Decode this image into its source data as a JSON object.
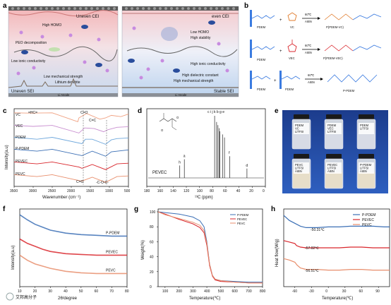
{
  "panels": {
    "a": {
      "label": "a",
      "left_top": "Uneven CEI",
      "right_top": "even CEI",
      "left_items": [
        "High HOMO",
        "PEO decomposition",
        "Low ionic conductivity",
        "Low mechanical strength",
        "Lithium dendrite"
      ],
      "left_bottom": "Uneven SEI",
      "left_anode": "Li Anode",
      "right_items": [
        "Low HOMO",
        "High stability",
        "High ionic conductivity",
        "High dielectric constant",
        "High mechanical strength"
      ],
      "right_bottom": "Stable SEI",
      "right_anode": "Li Anode"
    },
    "b": {
      "label": "b",
      "rows": [
        {
          "reactant1": "PDEM",
          "reactant2": "VC",
          "cond_top": "60℃",
          "cond_bottom": "AIBN",
          "product": "P(PDEM-VC)"
        },
        {
          "reactant1": "PDEM",
          "reactant2": "VEC",
          "cond_top": "60℃",
          "cond_bottom": "AIBN",
          "product": "P(PDEM-VEC)"
        },
        {
          "reactant1": "PDEM",
          "reactant2": "PDEM",
          "cond_top": "60℃",
          "cond_bottom": "AIBN",
          "product": "P-PDEM"
        }
      ]
    },
    "c": {
      "label": "c",
      "ylabel": "Intensity(a.u)",
      "xlabel": "Wavenumber (cm⁻¹)",
      "xticks": [
        "3500",
        "3000",
        "2500",
        "2000",
        "1500",
        "1000",
        "500"
      ],
      "annotations": [
        "=HC=",
        "C=O",
        "C=C",
        "C=O",
        "-C-O-C-"
      ],
      "series": [
        "VC",
        "VEC",
        "PDEM",
        "P-PDEM",
        "PEVEC",
        "PEVC"
      ]
    },
    "d": {
      "label": "d",
      "ylabel": "",
      "xlabel": "¹³C (ppm)",
      "xticks": [
        "180",
        "160",
        "140",
        "120",
        "100",
        "80",
        "60",
        "40",
        "20",
        "0"
      ],
      "peak_labels": [
        "c",
        "i",
        "j",
        "k",
        "b",
        "g",
        "e",
        "h",
        "a",
        "f",
        "d"
      ],
      "sample": "PEVEC"
    },
    "e": {
      "label": "e",
      "top_vials": [
        "PDEM\nVC\nLiTFSI",
        "PDEM\nVEC\nLiTFSI",
        "PDEM\nLiTFSI"
      ],
      "bottom_vials": [
        "PEVC\nLiTFSI\nAIBN",
        "PEVEC\nLiTFSI\nAIBN",
        "P-PDEM\nLiTFSI\nAIBN"
      ]
    },
    "f": {
      "label": "f",
      "ylabel": "Intensity(a.u)",
      "xlabel": "2θ/degree",
      "xticks": [
        "10",
        "20",
        "30",
        "40",
        "50",
        "60",
        "70",
        "80"
      ],
      "series": [
        "P-PDEM",
        "PEVEC",
        "PEVC"
      ]
    },
    "g": {
      "label": "g",
      "ylabel": "Weight(%)",
      "xlabel": "Temperature(℃)",
      "xticks": [
        "100",
        "200",
        "300",
        "400",
        "500",
        "600",
        "700",
        "800"
      ],
      "yticks": [
        "0",
        "20",
        "40",
        "60",
        "80",
        "100"
      ],
      "legend": [
        "P-PDEM",
        "PEVEC",
        "PEVC"
      ]
    },
    "h": {
      "label": "h",
      "ylabel": "Heat flow(W/g)",
      "xlabel": "Temperature(℃)",
      "xticks": [
        "-60",
        "-30",
        "0",
        "30",
        "60",
        "90"
      ],
      "legend": [
        "P-PDEM",
        "PEVEC",
        "PEVC"
      ],
      "tg_labels": [
        "-50.31℃",
        "-57.02℃",
        "-56.51℃"
      ]
    }
  },
  "watermark": "艾邦高分子",
  "colors": {
    "pPDEM": "#3b6fb5",
    "pevec": "#d9262c",
    "pevc": "#e88e6c",
    "vc": "#f0a080",
    "vec": "#c98fd0",
    "pdem": "#6fa8dc",
    "gray": "#555555"
  },
  "chart_data": [
    {
      "panel": "c",
      "type": "line",
      "title": "",
      "xlabel": "Wavenumber (cm⁻¹)",
      "ylabel": "Intensity(a.u)",
      "xlim": [
        3500,
        500
      ],
      "series": [
        {
          "name": "VC",
          "x": [
            3500,
            3100,
            2500,
            1830,
            1800,
            1600,
            1250,
            1100,
            950,
            700,
            500
          ],
          "values": [
            0.9,
            0.88,
            0.9,
            0.2,
            0.5,
            0.85,
            0.4,
            0.5,
            0.7,
            0.6,
            0.8
          ]
        },
        {
          "name": "VEC",
          "x": [
            3500,
            3000,
            2500,
            1800,
            1650,
            1400,
            1150,
            1050,
            800,
            500
          ],
          "values": [
            0.8,
            0.72,
            0.8,
            0.2,
            0.6,
            0.55,
            0.3,
            0.45,
            0.65,
            0.7
          ]
        },
        {
          "name": "PDEM",
          "x": [
            3500,
            2900,
            2500,
            1720,
            1630,
            1450,
            1100,
            950,
            800,
            500
          ],
          "values": [
            0.75,
            0.6,
            0.75,
            0.25,
            0.6,
            0.6,
            0.2,
            0.55,
            0.65,
            0.7
          ]
        },
        {
          "name": "P-PDEM",
          "x": [
            3500,
            2900,
            2500,
            1720,
            1450,
            1100,
            950,
            500
          ],
          "values": [
            0.7,
            0.55,
            0.7,
            0.2,
            0.55,
            0.15,
            0.5,
            0.65
          ]
        },
        {
          "name": "PEVEC",
          "x": [
            3500,
            2900,
            2500,
            1800,
            1720,
            1450,
            1100,
            800,
            500
          ],
          "values": [
            0.7,
            0.55,
            0.7,
            0.3,
            0.2,
            0.5,
            0.1,
            0.55,
            0.6
          ]
        },
        {
          "name": "PEVC",
          "x": [
            3500,
            2900,
            2500,
            1820,
            1720,
            1450,
            1100,
            800,
            500
          ],
          "values": [
            0.7,
            0.55,
            0.7,
            0.25,
            0.2,
            0.5,
            0.1,
            0.55,
            0.6
          ]
        }
      ]
    },
    {
      "panel": "d",
      "type": "line",
      "title": "",
      "xlabel": "¹³C (ppm)",
      "ylabel": "",
      "xlim": [
        180,
        0
      ],
      "peaks": [
        {
          "label": "h",
          "ppm": 130,
          "height": 0.2
        },
        {
          "label": "a",
          "ppm": 123,
          "height": 0.3
        },
        {
          "label": "c",
          "ppm": 77,
          "height": 1.0
        },
        {
          "label": "i",
          "ppm": 74,
          "height": 0.9
        },
        {
          "label": "j",
          "ppm": 72,
          "height": 0.85
        },
        {
          "label": "k",
          "ppm": 70,
          "height": 0.8
        },
        {
          "label": "b",
          "ppm": 69,
          "height": 0.75
        },
        {
          "label": "g",
          "ppm": 65,
          "height": 0.7
        },
        {
          "label": "e",
          "ppm": 62,
          "height": 0.65
        },
        {
          "label": "f",
          "ppm": 54,
          "height": 0.35
        },
        {
          "label": "d",
          "ppm": 28,
          "height": 0.15
        }
      ]
    },
    {
      "panel": "f",
      "type": "line",
      "title": "",
      "xlabel": "2θ/degree",
      "ylabel": "Intensity(a.u)",
      "xlim": [
        10,
        80
      ],
      "series": [
        {
          "name": "P-PDEM",
          "x": [
            10,
            15,
            20,
            25,
            30,
            40,
            50,
            60,
            70,
            80
          ],
          "values": [
            0.95,
            0.88,
            0.82,
            0.78,
            0.74,
            0.7,
            0.68,
            0.67,
            0.66,
            0.66
          ]
        },
        {
          "name": "PEVEC",
          "x": [
            10,
            15,
            20,
            25,
            30,
            40,
            50,
            60,
            70,
            80
          ],
          "values": [
            0.62,
            0.56,
            0.52,
            0.48,
            0.45,
            0.42,
            0.41,
            0.4,
            0.4,
            0.4
          ]
        },
        {
          "name": "PEVC",
          "x": [
            10,
            15,
            20,
            25,
            30,
            40,
            50,
            60,
            70,
            80
          ],
          "values": [
            0.4,
            0.33,
            0.28,
            0.25,
            0.22,
            0.18,
            0.16,
            0.15,
            0.15,
            0.15
          ]
        }
      ]
    },
    {
      "panel": "g",
      "type": "line",
      "title": "",
      "xlabel": "Temperature(℃)",
      "ylabel": "Weight(%)",
      "xlim": [
        50,
        800
      ],
      "ylim": [
        0,
        100
      ],
      "series": [
        {
          "name": "P-PDEM",
          "x": [
            50,
            100,
            200,
            300,
            350,
            380,
            400,
            420,
            440,
            460,
            500,
            600,
            700,
            800
          ],
          "values": [
            100,
            99,
            97,
            93,
            88,
            80,
            60,
            30,
            15,
            10,
            8,
            7,
            6,
            6
          ]
        },
        {
          "name": "PEVEC",
          "x": [
            50,
            100,
            200,
            300,
            350,
            380,
            400,
            420,
            440,
            460,
            500,
            600,
            700,
            800
          ],
          "values": [
            100,
            97,
            90,
            84,
            79,
            72,
            55,
            28,
            14,
            9,
            7,
            6,
            5,
            5
          ]
        },
        {
          "name": "PEVC",
          "x": [
            50,
            100,
            200,
            300,
            350,
            380,
            400,
            420,
            440,
            460,
            500,
            600,
            700,
            800
          ],
          "values": [
            100,
            96,
            91,
            86,
            82,
            75,
            58,
            30,
            15,
            10,
            8,
            6,
            5,
            5
          ]
        }
      ]
    },
    {
      "panel": "h",
      "type": "line",
      "title": "",
      "xlabel": "Temperature(℃)",
      "ylabel": "Heat flow(W/g)",
      "xlim": [
        -80,
        110
      ],
      "series": [
        {
          "name": "P-PDEM",
          "x": [
            -80,
            -70,
            -60,
            -50,
            -40,
            -20,
            0,
            20,
            40,
            60,
            80,
            100,
            110
          ],
          "values": [
            0.95,
            0.88,
            0.84,
            0.8,
            0.78,
            0.78,
            0.79,
            0.79,
            0.8,
            0.8,
            0.8,
            0.79,
            0.79
          ]
        },
        {
          "name": "PEVEC",
          "x": [
            -80,
            -70,
            -60,
            -57,
            -50,
            -40,
            -20,
            0,
            20,
            40,
            60,
            80,
            100,
            110
          ],
          "values": [
            0.6,
            0.58,
            0.56,
            0.53,
            0.51,
            0.5,
            0.5,
            0.5,
            0.5,
            0.51,
            0.51,
            0.5,
            0.5,
            0.5
          ]
        },
        {
          "name": "PEVC",
          "x": [
            -80,
            -70,
            -60,
            -56,
            -50,
            -40,
            -20,
            0,
            20,
            40,
            60,
            80,
            100,
            110
          ],
          "values": [
            0.35,
            0.33,
            0.3,
            0.26,
            0.22,
            0.2,
            0.2,
            0.19,
            0.19,
            0.2,
            0.2,
            0.19,
            0.19,
            0.19
          ]
        }
      ]
    }
  ]
}
